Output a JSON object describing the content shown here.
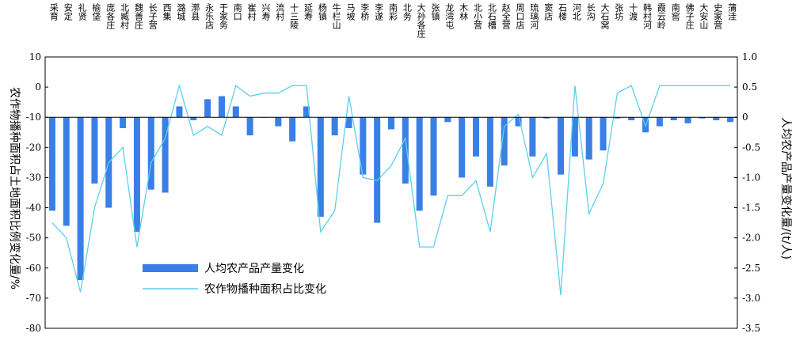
{
  "chart_data": {
    "type": "bar+line",
    "categories": [
      "采育",
      "安定",
      "礼贤",
      "榆垡",
      "庞各庄",
      "北臧村",
      "魏善庄",
      "长子营",
      "西集",
      "潞城",
      "漷县",
      "永乐店",
      "于家务",
      "南口",
      "崔村",
      "兴寿",
      "流村",
      "十三陵",
      "延寿",
      "杨镇",
      "牛栏山",
      "马坡",
      "李桥",
      "李遂",
      "南彩",
      "北务",
      "大孙各庄",
      "张镇",
      "龙湾屯",
      "木林",
      "北小营",
      "北石槽",
      "赵全营",
      "周口店",
      "琉璃河",
      "窦店",
      "石楼",
      "河北",
      "长沟",
      "大石窝",
      "张坊",
      "十渡",
      "韩村河",
      "霞云岭",
      "南窖",
      "佛子庄",
      "大安山",
      "史家营",
      "蒲洼"
    ],
    "series": [
      {
        "name": "人均农产品产量变化",
        "type": "bar",
        "axis": "right",
        "color": "#3a7fe6",
        "values": [
          -1.55,
          -1.8,
          -2.7,
          -1.1,
          -1.5,
          -0.18,
          -1.9,
          -1.2,
          -1.25,
          0.18,
          -0.05,
          0.3,
          0.35,
          0.18,
          -0.3,
          0.0,
          -0.15,
          -0.4,
          0.18,
          -1.65,
          -0.3,
          -0.18,
          -0.95,
          -1.75,
          -0.2,
          -1.1,
          -1.55,
          -1.3,
          -0.08,
          -1.0,
          -0.65,
          -1.15,
          -0.8,
          -0.15,
          -0.65,
          -0.02,
          -0.95,
          -0.65,
          -0.7,
          -0.55,
          -0.02,
          -0.05,
          -0.25,
          -0.15,
          -0.05,
          -0.1,
          -0.02,
          -0.05,
          -0.08
        ]
      },
      {
        "name": "农作物播种面积占比变化",
        "type": "line",
        "axis": "left",
        "color": "#5bd0ec",
        "values": [
          -45,
          -50,
          -68,
          -40,
          -25,
          -20,
          -53,
          -25,
          -17,
          0.5,
          -16,
          -13,
          -16,
          0.5,
          -3,
          -2,
          -2,
          0.5,
          0.5,
          -48,
          -41,
          -3,
          -30,
          -31,
          -26,
          -17,
          -53,
          -53,
          -36,
          -36,
          -31,
          -48,
          -13,
          -9,
          -30,
          -22,
          -69,
          0.5,
          -42,
          -32,
          -2,
          0.5,
          -13,
          0.5,
          0.5,
          0.5,
          0.5,
          0.5,
          0.5
        ]
      }
    ],
    "y_left": {
      "label": "农作物播种面积占土地面积比例变化量/%",
      "min": -80,
      "max": 10,
      "ticks": [
        "10",
        "0",
        "-10",
        "-20",
        "-30",
        "-40",
        "-50",
        "-60",
        "-70",
        "-80"
      ]
    },
    "y_right": {
      "label": "人均农产品产量变化量/(t/人)",
      "min": -3.5,
      "max": 1.0,
      "ticks": [
        "1.0",
        "0.5",
        "0",
        "-0.5",
        "-1.0",
        "-1.5",
        "-2.0",
        "-2.5",
        "-3.0",
        "-3.5"
      ]
    },
    "title": "",
    "xlabel": "",
    "legend": "center-left",
    "grid": false
  }
}
